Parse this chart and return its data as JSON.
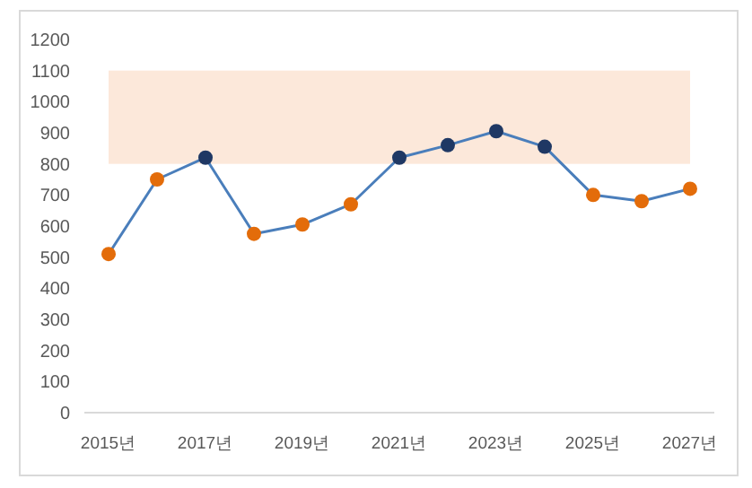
{
  "chart_data": {
    "type": "line",
    "categories": [
      "2015년",
      null,
      "2017년",
      null,
      "2019년",
      null,
      "2021년",
      null,
      "2023년",
      null,
      "2025년",
      null,
      "2027년"
    ],
    "series": [
      {
        "color": "#4a7ebb",
        "colors": [
          "#e36c0a",
          "#e36c0a",
          "#1f3864",
          "#e36c0a",
          "#e36c0a",
          "#e36c0a",
          "#1f3864",
          "#1f3864",
          "#1f3864",
          "#1f3864",
          "#e36c0a",
          "#e36c0a",
          "#e36c0a"
        ],
        "values": [
          510,
          750,
          820,
          575,
          605,
          670,
          820,
          860,
          905,
          855,
          700,
          680,
          720
        ]
      }
    ],
    "ylim": [
      0,
      1200
    ],
    "yticks": [
      0,
      100,
      200,
      300,
      400,
      500,
      600,
      700,
      800,
      900,
      1000,
      1100,
      1200
    ],
    "bands": [
      {
        "axis": "y",
        "from": 800,
        "to": 1100,
        "color": "#fce8da"
      }
    ],
    "marker": "circle",
    "line_style": "solid",
    "grid": false
  }
}
